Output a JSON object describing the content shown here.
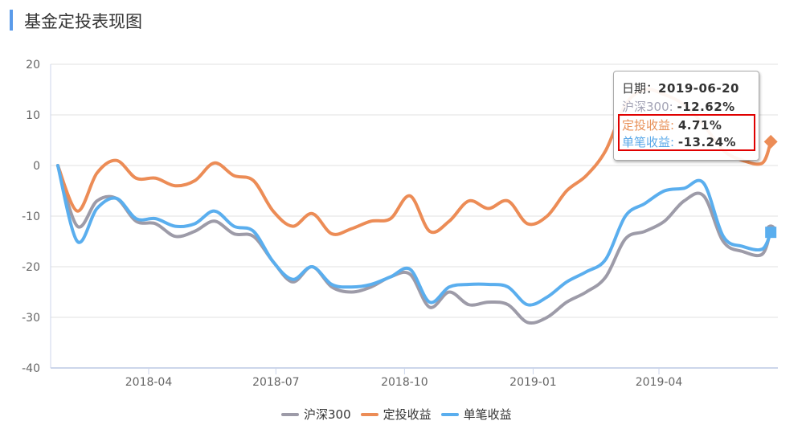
{
  "header": {
    "title": "基金定投表现图"
  },
  "colors": {
    "hs300": "#9d9ba8",
    "dingtou": "#ec8c56",
    "danbi": "#5aaeee",
    "grid": "#e0e0e0",
    "axis": "#ccd6eb",
    "highlight": "#e00000",
    "title_bar": "#5b9bea"
  },
  "tooltip": {
    "date_label": "日期：",
    "date_value": "2019-06-20",
    "rows": [
      {
        "label": "沪深300",
        "sep": ": ",
        "value": "-12.62%"
      },
      {
        "label": "定投收益",
        "sep": ": ",
        "value": "4.71%"
      },
      {
        "label": "单笔收益",
        "sep": ": ",
        "value": "-13.24%"
      }
    ]
  },
  "legend": [
    {
      "label": "沪深300"
    },
    {
      "label": "定投收益"
    },
    {
      "label": "单笔收益"
    }
  ],
  "chart_data": {
    "type": "line",
    "title": "基金定投表现图",
    "xlabel": "",
    "ylabel": "",
    "ylim": [
      -40,
      20
    ],
    "yticks": [
      20,
      10,
      0,
      -10,
      -20,
      -30,
      -40
    ],
    "xticks": [
      "2018-04",
      "2018-07",
      "2018-10",
      "2019-01",
      "2019-04"
    ],
    "grid": true,
    "legend_position": "bottom",
    "x": [
      "2018-01-26",
      "2018-02-09",
      "2018-02-23",
      "2018-03-09",
      "2018-03-23",
      "2018-04-06",
      "2018-04-20",
      "2018-05-04",
      "2018-05-18",
      "2018-06-01",
      "2018-06-15",
      "2018-06-29",
      "2018-07-13",
      "2018-07-27",
      "2018-08-10",
      "2018-08-24",
      "2018-09-07",
      "2018-09-21",
      "2018-10-05",
      "2018-10-19",
      "2018-11-02",
      "2018-11-16",
      "2018-11-30",
      "2018-12-14",
      "2018-12-28",
      "2019-01-11",
      "2019-01-25",
      "2019-02-08",
      "2019-02-22",
      "2019-03-08",
      "2019-03-22",
      "2019-04-05",
      "2019-04-19",
      "2019-05-03",
      "2019-05-17",
      "2019-05-31",
      "2019-06-14",
      "2019-06-20"
    ],
    "series": [
      {
        "name": "沪深300",
        "values": [
          0,
          -12,
          -7,
          -6.5,
          -11,
          -11.5,
          -14,
          -13,
          -11,
          -13.5,
          -14,
          -19,
          -23,
          -20,
          -24,
          -25,
          -24,
          -22,
          -21.5,
          -28,
          -25,
          -27.5,
          -27,
          -27.5,
          -31,
          -30,
          -27,
          -25,
          -22,
          -14.5,
          -13,
          -11,
          -7,
          -6,
          -15,
          -17,
          -17.5,
          -12.6
        ]
      },
      {
        "name": "定投收益",
        "values": [
          0,
          -9,
          -1.5,
          1,
          -2.5,
          -2.5,
          -4,
          -3,
          0.5,
          -2,
          -3,
          -9,
          -12,
          -9.5,
          -13.5,
          -12.5,
          -11,
          -10.5,
          -6,
          -13,
          -11,
          -7,
          -8.5,
          -7,
          -11.5,
          -10,
          -5,
          -2,
          3,
          12,
          15,
          14,
          12,
          8,
          3,
          1,
          0.5,
          4.7
        ]
      },
      {
        "name": "单笔收益",
        "values": [
          0,
          -15,
          -8.5,
          -6.5,
          -10.5,
          -10.5,
          -12,
          -11.5,
          -9,
          -12,
          -13,
          -19,
          -22.5,
          -20,
          -23.5,
          -24,
          -23.5,
          -22,
          -20.5,
          -27,
          -24,
          -23.5,
          -23.5,
          -24,
          -27.5,
          -26,
          -23,
          -21,
          -18.5,
          -10,
          -7.5,
          -5,
          -4.5,
          -3.5,
          -14,
          -16,
          -16.5,
          -13.2
        ]
      }
    ]
  }
}
